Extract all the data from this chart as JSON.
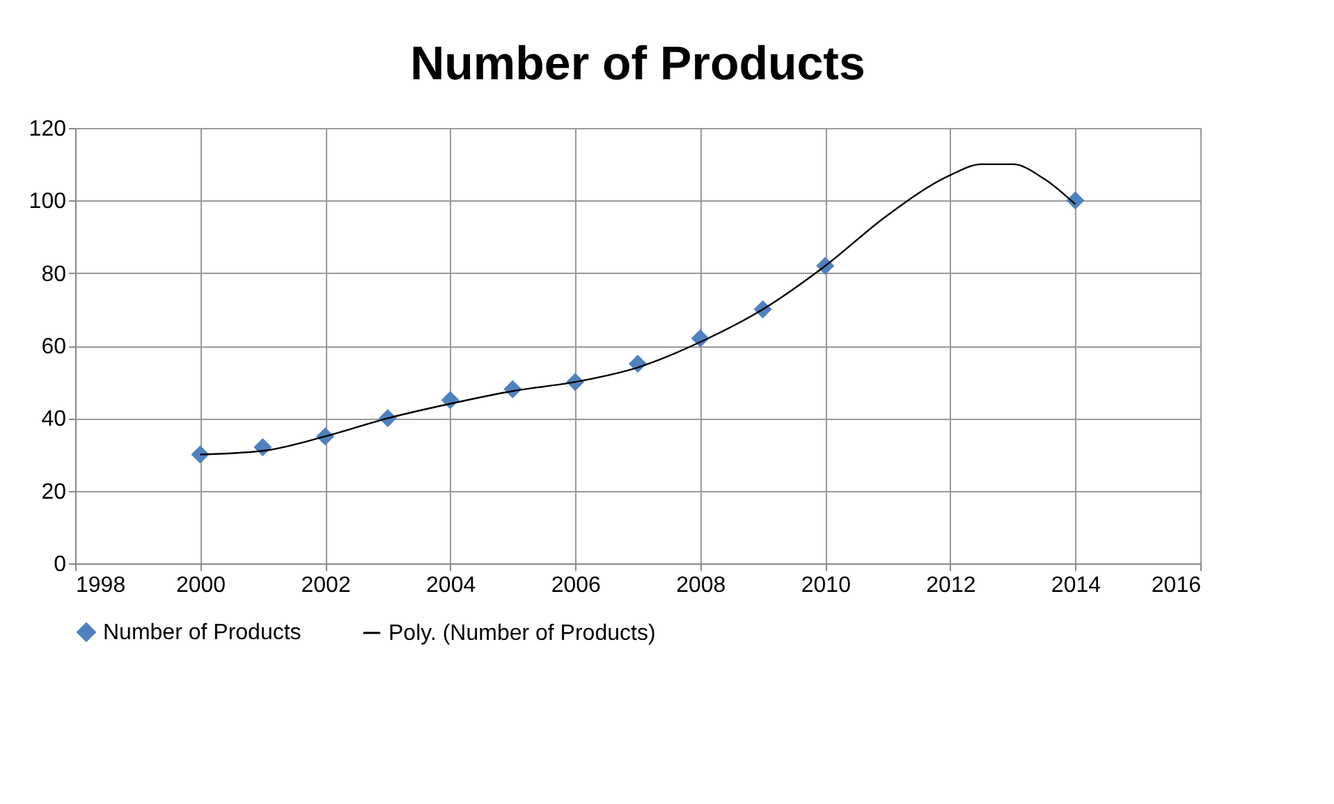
{
  "chart_data": {
    "type": "scatter",
    "title": "Number of Products",
    "x": [
      2000,
      2001,
      2002,
      2003,
      2004,
      2005,
      2006,
      2007,
      2008,
      2009,
      2010,
      2014
    ],
    "series": [
      {
        "name": "Number of Products",
        "color": "#4f81bd",
        "marker": "diamond",
        "values": [
          30,
          32,
          35,
          40,
          45,
          48,
          50,
          55,
          62,
          70,
          82,
          100
        ]
      },
      {
        "name": "Poly. (Number of Products)",
        "type": "line",
        "color": "#000000",
        "marker": "none",
        "line_style": "solid",
        "x": [
          2000,
          2001,
          2002,
          2003,
          2004,
          2005,
          2006,
          2007,
          2008,
          2009,
          2010,
          2011,
          2012,
          2012.5,
          2013,
          2013.5,
          2014
        ],
        "values": [
          30,
          31,
          35,
          40,
          44,
          47.5,
          50,
          54,
          61,
          70,
          82,
          96,
          107,
          110,
          110,
          106,
          99
        ]
      }
    ],
    "xlim": [
      1998,
      2016
    ],
    "xticks": [
      1998,
      2000,
      2002,
      2004,
      2006,
      2008,
      2010,
      2012,
      2014,
      2016
    ],
    "ylim": [
      0,
      120
    ],
    "yticks": [
      0,
      20,
      40,
      60,
      80,
      100,
      120
    ],
    "grid": true,
    "legend": "bottom"
  }
}
